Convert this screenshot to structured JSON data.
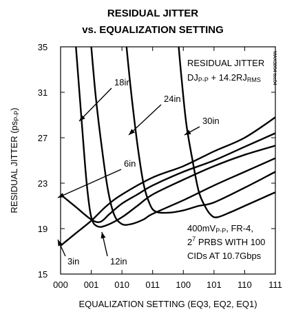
{
  "chart_data": {
    "type": "line",
    "title_line1": "RESIDUAL JITTER",
    "title_line2": "vs. EQUALIZATION SETTING",
    "xlabel": "EQUALIZATION SETTING (EQ3, EQ2, EQ1)",
    "ylabel": "RESIDUAL JITTER (ps",
    "ylabel_sub": "P-P",
    "ylabel_end": ")",
    "categories": [
      "000",
      "001",
      "010",
      "011",
      "100",
      "101",
      "110",
      "111"
    ],
    "ylim": [
      15,
      35
    ],
    "yticks": [
      15,
      19,
      23,
      27,
      31,
      35
    ],
    "grid": false,
    "series": [
      {
        "name": "3in",
        "x": [
          0,
          0.5,
          1,
          1.5,
          2,
          3,
          4,
          5,
          6,
          7
        ],
        "y": [
          17.5,
          18.6,
          19.7,
          21.0,
          22.0,
          23.5,
          24.5,
          25.8,
          27.0,
          28.8
        ]
      },
      {
        "name": "6in",
        "x": [
          0,
          0.5,
          1,
          1.3,
          1.6,
          2,
          2.5,
          3,
          4,
          5,
          6,
          7
        ],
        "y": [
          22.0,
          20.9,
          19.8,
          19.6,
          20.3,
          21.2,
          22.0,
          22.8,
          24.0,
          25.0,
          26.2,
          27.4
        ]
      },
      {
        "name": "12in",
        "x": [
          0.5,
          0.7,
          0.85,
          1,
          1.2,
          1.5,
          2,
          2.5,
          3,
          4,
          5,
          6,
          7
        ],
        "y": [
          35,
          28.0,
          23.0,
          20.0,
          19.2,
          19.3,
          20.0,
          21.0,
          22.0,
          23.3,
          24.5,
          25.5,
          26.3
        ]
      },
      {
        "name": "18in",
        "x": [
          1,
          1.15,
          1.35,
          1.55,
          1.75,
          2,
          2.3,
          2.7,
          3,
          4,
          5,
          6,
          7
        ],
        "y": [
          35,
          30.5,
          26.0,
          22.3,
          20.2,
          19.4,
          19.4,
          19.8,
          20.3,
          21.5,
          22.8,
          24.0,
          25.2
        ]
      },
      {
        "name": "24in",
        "x": [
          2.15,
          2.3,
          2.5,
          2.7,
          2.9,
          3.1,
          3.5,
          4,
          4.5,
          5,
          6,
          7
        ],
        "y": [
          35,
          31.0,
          26.5,
          23.0,
          21.2,
          20.5,
          20.4,
          20.6,
          21.0,
          21.3,
          22.6,
          24.0
        ]
      },
      {
        "name": "30in",
        "x": [
          3.85,
          3.95,
          4.1,
          4.3,
          4.5,
          4.7,
          4.9,
          5.1,
          5.5,
          6,
          6.5,
          7
        ],
        "y": [
          35,
          32.0,
          28.2,
          25.0,
          22.3,
          21.0,
          20.2,
          20.0,
          20.4,
          21.0,
          21.6,
          22.2
        ]
      }
    ],
    "annotations": {
      "box1_line1": "RESIDUAL JITTER",
      "box1_dj": "DJ",
      "box1_dj_sub": "P-P",
      "box1_plus": " + 14.2RJ",
      "box1_rms_sub": "RMS",
      "box2_mv": "400mV",
      "box2_mv_sub": "P-P",
      "box2_rest": ", FR-4,",
      "box2_line2_base": "2",
      "box2_line2_sup": "7",
      "box2_line2_rest": " PRBS WITH 100",
      "box2_line3": "CIDs AT 10.7Gbps",
      "watermark": "MAX3804 toc04"
    }
  }
}
